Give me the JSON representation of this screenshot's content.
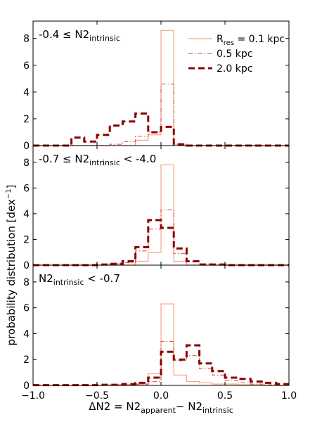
{
  "chart_data": {
    "type": "histogram",
    "ylabel": "probability distribution [dex",
    "ylabel_sup": "−1",
    "ylabel_close": "]",
    "xlabel": {
      "prefix": "ΔN2 = N2",
      "sub1": "apparent",
      "mid": "− N2",
      "sub2": "intrinsic"
    },
    "xlim": [
      -1.0,
      1.0
    ],
    "ylim": [
      0,
      9.3
    ],
    "x_ticks": [
      -1.0,
      -0.5,
      0.0,
      0.5,
      1.0
    ],
    "x_tick_labels": [
      "−1.0",
      "−0.5",
      "0.0",
      "0.5",
      "1.0"
    ],
    "y_ticks": [
      0,
      2,
      4,
      6,
      8
    ],
    "y_tick_labels": [
      "0",
      "2",
      "4",
      "6",
      "8"
    ],
    "bin_edges": [
      -1.0,
      -0.9,
      -0.8,
      -0.7,
      -0.6,
      -0.5,
      -0.4,
      -0.3,
      -0.2,
      -0.1,
      0.0,
      0.1,
      0.2,
      0.3,
      0.4,
      0.5,
      0.6,
      0.7,
      0.8,
      0.9,
      1.0
    ],
    "legend": {
      "placement": "top-right",
      "entries": [
        {
          "key": "s1",
          "prefix": "R",
          "sub": "res",
          "suffix": " = 0.1 kpc"
        },
        {
          "key": "s2",
          "text": "0.5 kpc"
        },
        {
          "key": "s3",
          "text": "2.0 kpc"
        }
      ]
    },
    "series_styles": {
      "s1": {
        "color": "#f4a582",
        "style": "solid",
        "width": 1.2
      },
      "s2": {
        "color": "#d6604d",
        "style": "dashdot",
        "width": 1.2
      },
      "s3": {
        "color": "#8b0000",
        "style": "dashed",
        "width": 3
      }
    },
    "panels": [
      {
        "annotation": {
          "pre": "-0.4 ",
          "mid": "≤ N2",
          "sub": "intrinsic",
          "post": ""
        },
        "series": [
          {
            "key": "s1",
            "values": [
              0,
              0,
              0,
              0,
              0,
              0,
              0,
              0,
              0.4,
              0.8,
              8.6,
              0.1,
              0,
              0,
              0,
              0,
              0,
              0,
              0,
              0
            ]
          },
          {
            "key": "s2",
            "values": [
              0,
              0,
              0,
              0,
              0,
              0,
              0.1,
              0.3,
              0.7,
              1.0,
              4.6,
              0.1,
              0,
              0,
              0,
              0,
              0,
              0,
              0,
              0
            ]
          },
          {
            "key": "s3",
            "values": [
              0,
              0,
              0,
              0.6,
              0.3,
              0.8,
              1.5,
              1.8,
              2.4,
              1.0,
              1.4,
              0.1,
              0,
              0,
              0,
              0,
              0,
              0,
              0,
              0
            ]
          }
        ]
      },
      {
        "annotation": {
          "pre": "-0.7 ",
          "mid": "≤ N2",
          "sub": "intrinsic",
          "post": " < -4.0"
        },
        "series": [
          {
            "key": "s1",
            "values": [
              0,
              0,
              0,
              0,
              0,
              0,
              0,
              0,
              0.3,
              1.0,
              7.8,
              0.3,
              0,
              0,
              0,
              0,
              0,
              0,
              0,
              0
            ]
          },
          {
            "key": "s2",
            "values": [
              0,
              0,
              0,
              0,
              0,
              0,
              0.1,
              0.2,
              1.1,
              2.8,
              4.3,
              0.9,
              0.3,
              0.1,
              0,
              0,
              0,
              0,
              0,
              0
            ]
          },
          {
            "key": "s3",
            "values": [
              0,
              0,
              0,
              0,
              0,
              0.05,
              0.1,
              0.3,
              1.4,
              3.5,
              2.9,
              1.3,
              0.3,
              0.05,
              0.05,
              0,
              0,
              0,
              0,
              0
            ]
          }
        ]
      },
      {
        "annotation": {
          "pre": "",
          "mid": "N2",
          "sub": "intrinsic",
          "post": " < -0.7"
        },
        "series": [
          {
            "key": "s1",
            "values": [
              0,
              0,
              0,
              0,
              0,
              0,
              0,
              0,
              0.05,
              0.9,
              6.3,
              0.8,
              0.3,
              0.2,
              0.1,
              0.1,
              0.05,
              0.05,
              0,
              0
            ]
          },
          {
            "key": "s2",
            "values": [
              0,
              0,
              0,
              0,
              0,
              0,
              0.05,
              0.05,
              0.1,
              0.3,
              3.4,
              1.9,
              2.3,
              1.3,
              0.8,
              0.4,
              0.2,
              0.1,
              0.05,
              0.02
            ]
          },
          {
            "key": "s3",
            "values": [
              0.02,
              0.02,
              0.02,
              0.02,
              0.02,
              0.05,
              0.05,
              0.1,
              0.2,
              0.6,
              2.6,
              2.0,
              3.1,
              1.7,
              1.1,
              0.6,
              0.5,
              0.3,
              0.2,
              0.1
            ]
          }
        ]
      }
    ]
  }
}
